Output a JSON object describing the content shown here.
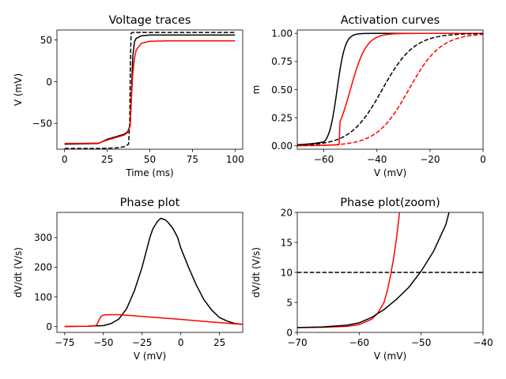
{
  "figure": {
    "background": "#ffffff"
  },
  "chart_data": [
    {
      "type": "line",
      "title": "Voltage traces",
      "xlabel": "Time (ms)",
      "ylabel": "V (mV)",
      "xlim": [
        -4.5,
        104.5
      ],
      "ylim": [
        -81,
        62
      ],
      "xticks": [
        0,
        25,
        50,
        75,
        100
      ],
      "xtick_labels": [
        "0",
        "25",
        "50",
        "75",
        "100"
      ],
      "yticks": [
        -50,
        0,
        50
      ],
      "ytick_labels": [
        "−50",
        "0",
        "50"
      ],
      "grid": false,
      "series": [
        {
          "color": "#000000",
          "dash": "dashed",
          "x": [
            0,
            20,
            30,
            35,
            37.5,
            38.2,
            38.6,
            39,
            40,
            45,
            60,
            100
          ],
          "y": [
            -80,
            -80,
            -79.5,
            -78,
            -75,
            -50,
            20,
            58,
            59,
            59,
            59,
            59
          ]
        },
        {
          "color": "#000000",
          "dash": "solid",
          "x": [
            0,
            10,
            20,
            25,
            30,
            35,
            37,
            38.5,
            39.2,
            40,
            41,
            42,
            45,
            50,
            60,
            100
          ],
          "y": [
            -75,
            -74.5,
            -74,
            -69,
            -66,
            -63,
            -60,
            -52,
            -15,
            30,
            48,
            52,
            55,
            56,
            56,
            56
          ]
        },
        {
          "color": "#ff0000",
          "dash": "solid",
          "x": [
            0,
            10,
            20,
            25,
            30,
            35,
            37,
            38.5,
            39.2,
            40,
            41,
            42,
            45,
            50,
            60,
            100
          ],
          "y": [
            -74,
            -74,
            -73.5,
            -70,
            -67,
            -64,
            -61,
            -53,
            -20,
            10,
            28,
            38,
            46,
            48.5,
            49,
            49
          ]
        }
      ]
    },
    {
      "type": "line",
      "title": "Activation curves",
      "xlabel": "V (mV)",
      "ylabel": "m",
      "xlim": [
        -70,
        0
      ],
      "ylim": [
        -0.03,
        1.03
      ],
      "xticks": [
        -60,
        -40,
        -20,
        0
      ],
      "xtick_labels": [
        "−60",
        "−40",
        "−20",
        "0"
      ],
      "yticks": [
        0,
        0.25,
        0.5,
        0.75,
        1
      ],
      "ytick_labels": [
        "0.00",
        "0.25",
        "0.50",
        "0.75",
        "1.00"
      ],
      "grid": false,
      "series": [
        {
          "color": "#000000",
          "dash": "solid",
          "curve": "sigmoid",
          "params": {
            "v_half": -55,
            "k": 1.5,
            "base": 0.01,
            "base_k": 8
          }
        },
        {
          "color": "#ff0000",
          "dash": "solid",
          "curve": "sigmoid",
          "params": {
            "v_half": -50,
            "k": 3,
            "start": -54,
            "base": 0.01
          }
        },
        {
          "color": "#000000",
          "dash": "dashed",
          "curve": "sigmoid",
          "params": {
            "v_half": -38,
            "k": 6
          }
        },
        {
          "color": "#ff0000",
          "dash": "dashed",
          "curve": "sigmoid",
          "params": {
            "v_half": -28,
            "k": 6
          }
        }
      ]
    },
    {
      "type": "line",
      "title": "Phase plot",
      "xlabel": "V (mV)",
      "ylabel": "dV/dt (V/s)",
      "xlim": [
        -80,
        40
      ],
      "ylim": [
        -20,
        385
      ],
      "xticks": [
        -75,
        -50,
        -25,
        0,
        25
      ],
      "xtick_labels": [
        "−75",
        "−50",
        "−25",
        "0",
        "25"
      ],
      "yticks": [
        0,
        100,
        200,
        300
      ],
      "ytick_labels": [
        "0",
        "100",
        "200",
        "300"
      ],
      "grid": false,
      "series": [
        {
          "color": "#000000",
          "dash": "solid",
          "x": [
            -75,
            -60,
            -50,
            -45,
            -40,
            -35,
            -30,
            -25,
            -20,
            -18,
            -15,
            -13,
            -10,
            -8,
            -5,
            -2,
            0,
            5,
            10,
            15,
            20,
            25,
            30,
            35,
            40
          ],
          "y": [
            0,
            1,
            3,
            10,
            25,
            60,
            120,
            200,
            300,
            330,
            355,
            365,
            360,
            350,
            330,
            300,
            265,
            200,
            140,
            90,
            55,
            30,
            18,
            10,
            7
          ]
        },
        {
          "color": "#ff0000",
          "dash": "solid",
          "x": [
            -75,
            -60,
            -55,
            -54,
            -53,
            -52,
            -51,
            -50,
            -45,
            -40,
            0,
            20,
            40
          ],
          "y": [
            0,
            1,
            3,
            8,
            20,
            30,
            36,
            39,
            40,
            40,
            24,
            15,
            7
          ]
        }
      ]
    },
    {
      "type": "line",
      "title": "Phase plot(zoom)",
      "xlabel": "V (mV)",
      "ylabel": "dV/dt (V/s)",
      "xlim": [
        -70,
        -40
      ],
      "ylim": [
        0,
        20
      ],
      "xticks": [
        -70,
        -60,
        -50,
        -40
      ],
      "xtick_labels": [
        "−70",
        "−60",
        "−50",
        "−40"
      ],
      "yticks": [
        0,
        5,
        10,
        15,
        20
      ],
      "ytick_labels": [
        "0",
        "5",
        "10",
        "15",
        "20"
      ],
      "grid": false,
      "series": [
        {
          "color": "#000000",
          "dash": "dashed",
          "x": [
            -70,
            -40
          ],
          "y": [
            10,
            10
          ]
        },
        {
          "color": "#ff0000",
          "dash": "solid",
          "x": [
            -70,
            -66,
            -62,
            -60,
            -58,
            -57,
            -56,
            -55.5,
            -55,
            -54.5,
            -54,
            -53.8,
            -53.6,
            -53.5
          ],
          "y": [
            0.8,
            0.85,
            1.0,
            1.3,
            2.2,
            3.2,
            5.0,
            6.8,
            9.2,
            12.0,
            15.5,
            17.2,
            19.0,
            20
          ]
        },
        {
          "color": "#000000",
          "dash": "solid",
          "x": [
            -70,
            -66,
            -62,
            -60,
            -58,
            -56,
            -54,
            -52,
            -50,
            -48,
            -46,
            -45.5
          ],
          "y": [
            0.8,
            0.9,
            1.2,
            1.6,
            2.5,
            3.8,
            5.5,
            7.5,
            10.2,
            13.5,
            18.0,
            20
          ]
        }
      ]
    }
  ]
}
